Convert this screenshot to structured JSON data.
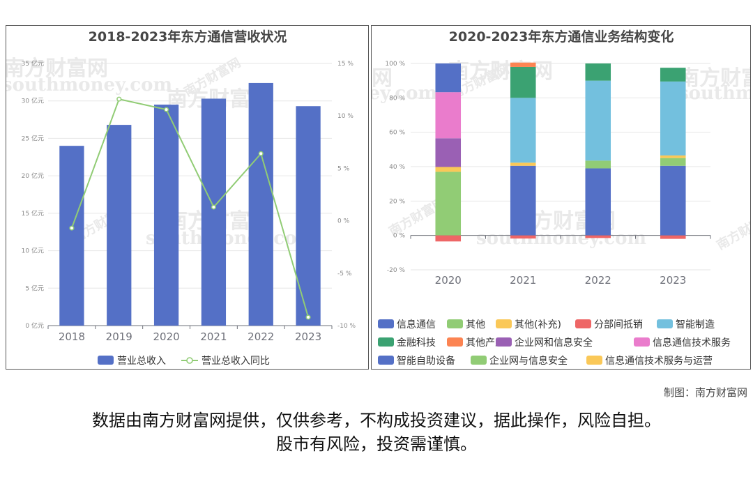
{
  "charts": {
    "left_title": "2018-2023年东方通信营收状况",
    "right_title": "2020-2023年东方通信业务结构变化"
  },
  "chart_data": [
    {
      "type": "bar",
      "title": "2018-2023年东方通信营收状况",
      "categories": [
        "2018",
        "2019",
        "2020",
        "2021",
        "2022",
        "2023"
      ],
      "series": [
        {
          "name": "营业总收入",
          "type": "bar",
          "axis": "left",
          "values": [
            24.0,
            26.8,
            29.5,
            30.3,
            32.4,
            29.3
          ],
          "color": "#5470c6"
        },
        {
          "name": "营业总收入同比",
          "type": "line",
          "axis": "right",
          "values": [
            -0.7,
            11.6,
            10.6,
            1.3,
            6.4,
            -9.2
          ],
          "color": "#91cc75"
        }
      ],
      "y_left": {
        "min": 0,
        "max": 35,
        "step": 5,
        "ticks": [
          "0 亿元",
          "5 亿元",
          "10 亿元",
          "15 亿元",
          "20 亿元",
          "25 亿元",
          "30 亿元",
          "35 亿元"
        ]
      },
      "y_right": {
        "min": -10,
        "max": 15,
        "step": 5,
        "ticks": [
          "-10 %",
          "-5 %",
          "0 %",
          "5 %",
          "10 %",
          "15 %"
        ]
      },
      "legend_position": "bottom",
      "grid": true
    },
    {
      "type": "bar",
      "stacked": true,
      "title": "2020-2023年东方通信业务结构变化",
      "categories": [
        "2020",
        "2021",
        "2022",
        "2023"
      ],
      "series": [
        {
          "name": "信息通信",
          "color": "#5470c6",
          "values": [
            0,
            40.5,
            39,
            40.5
          ]
        },
        {
          "name": "其他",
          "color": "#91cc75",
          "values": [
            37,
            0,
            4.5,
            4.5
          ]
        },
        {
          "name": "其他(补充)",
          "color": "#fac858",
          "values": [
            2.8,
            1.8,
            0,
            1.5
          ]
        },
        {
          "name": "分部间抵销",
          "color": "#ee6666",
          "values": [
            -3.5,
            -1.8,
            -1.5,
            -2
          ]
        },
        {
          "name": "智能制造",
          "color": "#73c0de",
          "values": [
            0,
            37.7,
            46.5,
            43
          ]
        },
        {
          "name": "金融科技",
          "color": "#3ba272",
          "values": [
            0,
            18,
            10,
            8
          ]
        },
        {
          "name": "其他产业",
          "color": "#fc8452",
          "values": [
            0,
            2.5,
            0,
            0
          ]
        },
        {
          "name": "企业网和信息安全",
          "color": "#9a60b4",
          "values": [
            16.7,
            0,
            0,
            0
          ]
        },
        {
          "name": "信息通信技术服务",
          "color": "#ea7ccc",
          "values": [
            26.8,
            0,
            0,
            0
          ]
        },
        {
          "name": "智能自助设备",
          "color": "#5470c6",
          "values": [
            16.7,
            0,
            0,
            0
          ]
        },
        {
          "name": "企业网与信息安全",
          "color": "#91cc75",
          "values": [
            0,
            0,
            0,
            0
          ]
        },
        {
          "name": "信息通信技术服务与运营",
          "color": "#fac858",
          "values": [
            0,
            0,
            0,
            0
          ]
        }
      ],
      "y": {
        "min": -20,
        "max": 100,
        "step": 20,
        "ticks": [
          "-20 %",
          "0 %",
          "20 %",
          "40 %",
          "60 %",
          "80 %",
          "100 %"
        ]
      },
      "legend_position": "bottom",
      "grid": true
    }
  ],
  "watermark": {
    "cn": "南方财富网",
    "en": "southmoney.com"
  },
  "footer": {
    "credit": "制图：南方财富网",
    "disclaimer_line1": "数据由南方财富网提供，仅供参考，不构成投资建议，据此操作，风险自担。",
    "disclaimer_line2": "股市有风险，投资需谨慎。"
  }
}
